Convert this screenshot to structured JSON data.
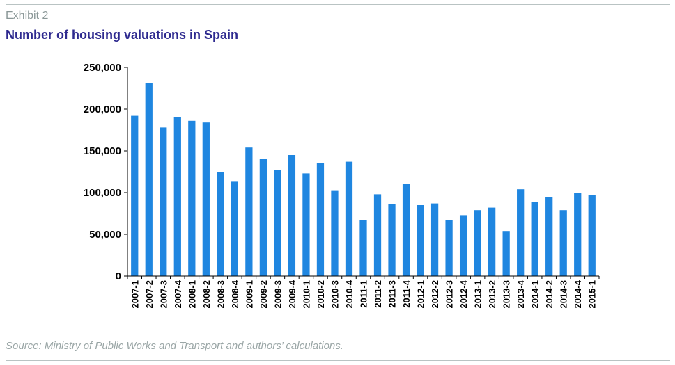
{
  "header": {
    "exhibit": "Exhibit 2",
    "title": "Number of housing valuations in Spain"
  },
  "footer": {
    "source": "Source: Ministry of Public Works and Transport and authors’ calculations."
  },
  "colors": {
    "bar": "#1f86e0",
    "title": "#2e2a8f",
    "axis": "#000000"
  },
  "chart_data": {
    "type": "bar",
    "title": "Number of housing valuations in Spain",
    "xlabel": "",
    "ylabel": "",
    "ylim": [
      0,
      250000
    ],
    "yticks": [
      0,
      50000,
      100000,
      150000,
      200000,
      250000
    ],
    "ytick_labels": [
      "0",
      "50,000",
      "100,000",
      "150,000",
      "200,000",
      "250,000"
    ],
    "grid": false,
    "legend": "none",
    "categories": [
      "2007-1",
      "2007-2",
      "2007-3",
      "2007-4",
      "2008-1",
      "2008-2",
      "2008-3",
      "2008-4",
      "2009-1",
      "2009-2",
      "2009-3",
      "2009-4",
      "2010-1",
      "2010-2",
      "2010-3",
      "2010-4",
      "2011-1",
      "2011-2",
      "2011-3",
      "2011-4",
      "2012-1",
      "2012-2",
      "2012-3",
      "2012-4",
      "2013-1",
      "2013-2",
      "2013-3",
      "2013-4",
      "2014-1",
      "2014-2",
      "2014-3",
      "2014-4",
      "2015-1"
    ],
    "values": [
      192000,
      231000,
      178000,
      190000,
      186000,
      184000,
      125000,
      113000,
      154000,
      140000,
      127000,
      145000,
      123000,
      135000,
      102000,
      137000,
      67000,
      98000,
      86000,
      110000,
      85000,
      87000,
      67000,
      73000,
      79000,
      82000,
      54000,
      104000,
      89000,
      95000,
      79000,
      100000,
      97000
    ]
  }
}
